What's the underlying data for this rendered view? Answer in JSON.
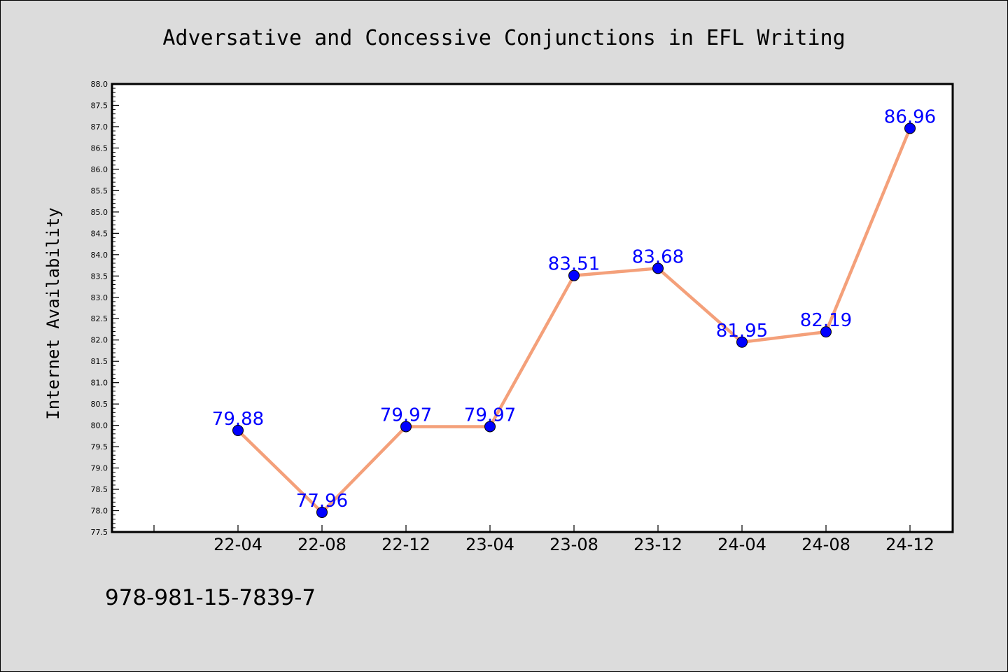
{
  "chart_data": {
    "type": "line",
    "title": "Adversative and Concessive Conjunctions in EFL Writing",
    "xlabel": "",
    "ylabel": "Internet Availability",
    "categories": [
      "22-04",
      "22-08",
      "22-12",
      "23-04",
      "23-08",
      "23-12",
      "24-04",
      "24-08",
      "24-12"
    ],
    "series": [
      {
        "values": [
          79.88,
          77.96,
          79.97,
          79.97,
          83.51,
          83.68,
          81.95,
          82.19,
          86.96
        ],
        "labels": [
          "79.88",
          "77.96",
          "79.97",
          "79.97",
          "83.51",
          "83.68",
          "81.95",
          "82.19",
          "86.96"
        ],
        "line_color": "#f4a07a",
        "marker_color": "#0000ff"
      }
    ],
    "ylim": [
      77.5,
      88.0
    ],
    "y_tick_step": 0.5,
    "grid": false,
    "legend": "none"
  },
  "footer": {
    "isbn": "978-981-15-7839-7"
  },
  "colors": {
    "background": "#dcdcdc",
    "plot_background": "#ffffff",
    "line": "#f4a07a",
    "marker": "#0000ff",
    "label": "#0000ff"
  }
}
